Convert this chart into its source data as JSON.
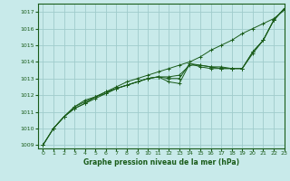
{
  "bg_color": "#c8eaea",
  "grid_color": "#a0cccc",
  "line_color": "#1a5c1a",
  "title": "Graphe pression niveau de la mer (hPa)",
  "xlim": [
    -0.5,
    23
  ],
  "ylim": [
    1008.8,
    1017.5
  ],
  "yticks": [
    1009,
    1010,
    1011,
    1012,
    1013,
    1014,
    1015,
    1016,
    1017
  ],
  "xticks": [
    0,
    1,
    2,
    3,
    4,
    5,
    6,
    7,
    8,
    9,
    10,
    11,
    12,
    13,
    14,
    15,
    16,
    17,
    18,
    19,
    20,
    21,
    22,
    23
  ],
  "lines": [
    {
      "x": [
        0,
        1,
        2,
        3,
        4,
        5,
        6,
        7,
        8,
        9,
        10,
        11,
        12,
        13,
        14,
        15,
        16,
        17,
        18,
        19,
        20,
        21,
        22,
        23
      ],
      "y": [
        1009.0,
        1010.0,
        1010.7,
        1011.2,
        1011.5,
        1011.9,
        1012.2,
        1012.5,
        1012.8,
        1013.0,
        1013.2,
        1013.4,
        1013.6,
        1013.8,
        1014.0,
        1014.3,
        1014.7,
        1015.0,
        1015.3,
        1015.7,
        1016.0,
        1016.3,
        1016.6,
        1017.1
      ]
    },
    {
      "x": [
        0,
        1,
        2,
        3,
        4,
        5,
        6,
        7,
        8,
        9,
        10,
        11,
        12,
        13,
        14,
        15,
        16,
        17,
        18,
        19,
        20,
        21,
        22,
        23
      ],
      "y": [
        1009.0,
        1010.0,
        1010.7,
        1011.2,
        1011.5,
        1011.8,
        1012.1,
        1012.4,
        1012.6,
        1012.8,
        1013.0,
        1013.1,
        1013.1,
        1013.2,
        1013.8,
        1013.8,
        1013.7,
        1013.7,
        1013.6,
        1013.6,
        1014.6,
        1015.3,
        1016.5,
        1017.2
      ]
    },
    {
      "x": [
        0,
        1,
        2,
        3,
        4,
        5,
        6,
        7,
        8,
        9,
        10,
        11,
        12,
        13,
        14,
        15,
        16,
        17,
        18,
        19,
        20,
        21,
        22,
        23
      ],
      "y": [
        1009.0,
        1010.0,
        1010.7,
        1011.3,
        1011.6,
        1011.9,
        1012.2,
        1012.4,
        1012.6,
        1012.8,
        1013.0,
        1013.1,
        1012.8,
        1012.7,
        1013.9,
        1013.8,
        1013.7,
        1013.6,
        1013.6,
        1013.6,
        1014.6,
        1015.3,
        1016.5,
        1017.2
      ]
    },
    {
      "x": [
        1,
        2,
        3,
        4,
        5,
        6,
        7,
        8,
        9,
        10,
        11,
        12,
        13,
        14,
        15,
        16,
        17,
        18,
        19,
        20,
        21,
        22,
        23
      ],
      "y": [
        1010.0,
        1010.7,
        1011.3,
        1011.7,
        1011.9,
        1012.1,
        1012.4,
        1012.6,
        1012.8,
        1013.0,
        1013.1,
        1013.0,
        1013.0,
        1013.9,
        1013.7,
        1013.6,
        1013.6,
        1013.6,
        1013.6,
        1014.5,
        1015.3,
        1016.5,
        1017.2
      ]
    }
  ]
}
